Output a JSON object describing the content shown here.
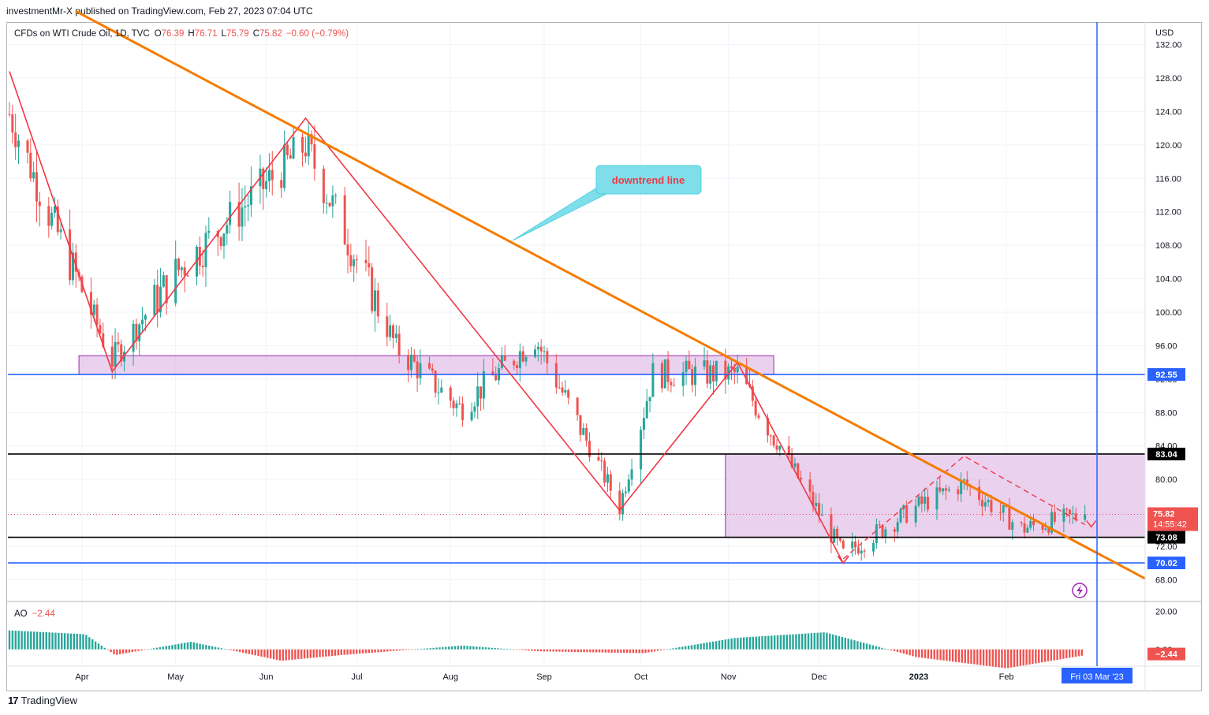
{
  "header": {
    "published": "investmentMr-X published on TradingView.com, Feb 27, 2023 07:04 UTC"
  },
  "legend": {
    "symbol": "CFDs on WTI Crude Oil, 1D, TVC",
    "o_label": "O",
    "o": "76.39",
    "h_label": "H",
    "h": "76.71",
    "l_label": "L",
    "l": "75.79",
    "c_label": "C",
    "c": "75.82",
    "change": "−0.60 (−0.79%)"
  },
  "ao_legend": {
    "name": "AO",
    "value": "−2.44"
  },
  "annotation": {
    "text": "downtrend line"
  },
  "footer": {
    "brand": "TradingView"
  },
  "colors": {
    "up": "#26a69a",
    "down": "#ef5350",
    "trend": "#f57c00",
    "zigzag": "#f23645",
    "hline_blue": "#2962ff",
    "zone_fill": "#e1bee7",
    "callout": "#80deea"
  },
  "chart_data": {
    "type": "candlestick",
    "title": "CFDs on WTI Crude Oil, 1D, TVC",
    "currency": "USD",
    "ylim": [
      65.5,
      134.5
    ],
    "y_ticks": [
      "132.00",
      "128.00",
      "124.00",
      "120.00",
      "116.00",
      "112.00",
      "108.00",
      "104.00",
      "100.00",
      "96.00",
      "92.00",
      "88.00",
      "84.00",
      "80.00",
      "76.00",
      "72.00",
      "68.00"
    ],
    "x_ticks": [
      "Apr",
      "May",
      "Jun",
      "Jul",
      "Aug",
      "Sep",
      "Oct",
      "Nov",
      "Dec",
      "2023",
      "Feb"
    ],
    "cursor_date_label": "Fri 03 Mar '23",
    "price_labels": {
      "level_92": "92.55",
      "level_83": "83.04",
      "last": "75.82",
      "countdown": "14:55:42",
      "level_73": "73.08",
      "level_70": "70.02"
    },
    "horizontal_levels": [
      {
        "value": 92.55,
        "color": "blue"
      },
      {
        "value": 83.04,
        "color": "black"
      },
      {
        "value": 73.08,
        "color": "black"
      },
      {
        "value": 70.02,
        "color": "blue"
      }
    ],
    "zones": [
      {
        "from_date": "Mar 31",
        "to_date": "Nov 16",
        "low": 92.55,
        "high": 94.8
      },
      {
        "from_date": "Oct 31",
        "to_date": "Mar 03",
        "low": 73.08,
        "high": 83.04
      }
    ],
    "trend_line": [
      {
        "date": "Mar 09",
        "price": 136.0
      },
      {
        "date": "Mar 03",
        "price": 71.2
      }
    ],
    "zigzag": [
      {
        "date": "Mar 08",
        "price": 128.8
      },
      {
        "date": "Apr 11",
        "price": 92.9
      },
      {
        "date": "Jun 14",
        "price": 123.2
      },
      {
        "date": "Sep 26",
        "price": 76.3
      },
      {
        "date": "Nov 04",
        "price": 94.0
      },
      {
        "date": "Dec 09",
        "price": 70.0
      }
    ],
    "dashed_path": [
      {
        "date": "Dec 09",
        "price": 70.5
      },
      {
        "date": "Jan 18",
        "price": 82.8
      },
      {
        "date": "Feb 27",
        "price": 74.6
      }
    ],
    "series": [
      {
        "name": "WTI Crude Oil",
        "points": [
          {
            "x": "Mar 08",
            "y": 123.7
          },
          {
            "x": "Mar 22",
            "y": 111.0
          },
          {
            "x": "Apr 11",
            "y": 94.3
          },
          {
            "x": "May 02",
            "y": 104.7
          },
          {
            "x": "Jun 14",
            "y": 120.0
          },
          {
            "x": "Jul 14",
            "y": 95.8
          },
          {
            "x": "Aug 04",
            "y": 88.5
          },
          {
            "x": "Aug 29",
            "y": 96.9
          },
          {
            "x": "Sep 26",
            "y": 76.7
          },
          {
            "x": "Oct 07",
            "y": 92.6
          },
          {
            "x": "Nov 04",
            "y": 92.6
          },
          {
            "x": "Dec 09",
            "y": 71.0
          },
          {
            "x": "Jan 03",
            "y": 76.9
          },
          {
            "x": "Jan 18",
            "y": 79.5
          },
          {
            "x": "Feb 06",
            "y": 74.1
          },
          {
            "x": "Feb 27",
            "y": 75.82
          }
        ]
      }
    ],
    "ao": {
      "name": "AO",
      "last": -2.44,
      "ylim": [
        -8,
        24
      ],
      "y_ticks": [
        "20.00",
        "0.00"
      ],
      "last_label": "−2.44"
    }
  }
}
